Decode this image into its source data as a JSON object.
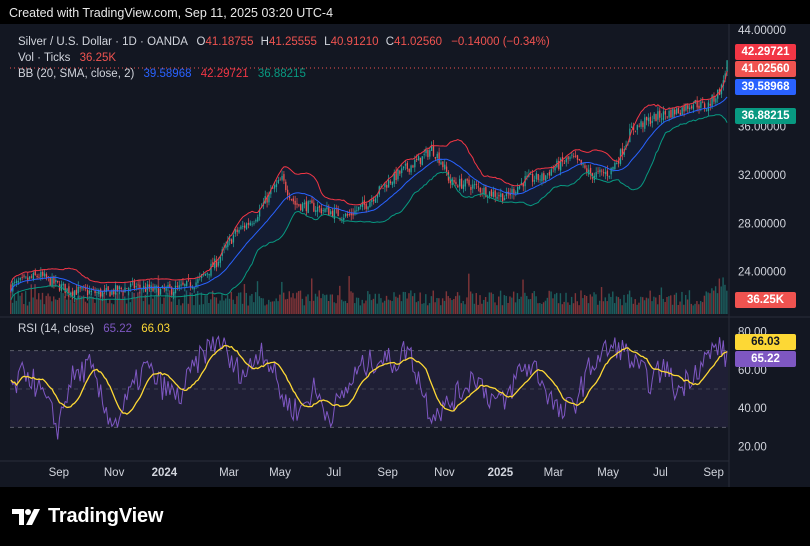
{
  "header": {
    "credit": "Created with TradingView.com, Sep 11, 2025 03:20 UTC-4"
  },
  "legend": {
    "symbol": "Silver / U.S. Dollar · 1D · OANDA",
    "o_label": "O",
    "open": "41.18755",
    "h_label": "H",
    "high": "41.25555",
    "l_label": "L",
    "low": "40.91210",
    "c_label": "C",
    "close": "41.02560",
    "change": "−0.14000 (−0.34%)",
    "vol_label": "Vol · Ticks",
    "vol_value": "36.25K",
    "bb_label": "BB (20, SMA, close, 2)",
    "bb_mid": "39.58968",
    "bb_upper": "42.29721",
    "bb_lower": "36.88215",
    "rsi_label": "RSI (14, close)",
    "rsi_value": "65.22",
    "rsi_ma_value": "66.03"
  },
  "price_tags": {
    "upper": "42.29721",
    "close": "41.02560",
    "mid": "39.58968",
    "lower": "36.88215",
    "volume": "36.25K",
    "rsi_ma": "66.03",
    "rsi": "65.22"
  },
  "footer": {
    "brand": "TradingView"
  },
  "colors": {
    "background": "#131722",
    "up": "#26a69a",
    "down": "#ef5350",
    "bb_upper": "#f23645",
    "bb_basis": "#2962ff",
    "bb_lower": "#089981",
    "rsi": "#7e57c2",
    "rsi_ma": "#fdd835"
  },
  "chart_data": {
    "type": "candlestick",
    "price_axis": {
      "ticks": [
        "44.00000",
        "36.00000",
        "32.00000",
        "28.00000",
        "24.00000"
      ],
      "range": [
        20.5,
        44.5
      ]
    },
    "rsi_axis": {
      "ticks": [
        "80.00",
        "60.00",
        "40.00",
        "20.00"
      ],
      "bands": [
        70,
        50,
        30
      ]
    },
    "time_axis": [
      "Sep",
      "Nov",
      "2024",
      "Mar",
      "May",
      "Jul",
      "Sep",
      "Nov",
      "2025",
      "Mar",
      "May",
      "Jul",
      "Sep"
    ],
    "price_anchors": [
      [
        0,
        22.8
      ],
      [
        15,
        23.7
      ],
      [
        30,
        22.5
      ],
      [
        50,
        22.2
      ],
      [
        65,
        22.8
      ],
      [
        80,
        22.4
      ],
      [
        90,
        22.6
      ],
      [
        100,
        23.2
      ],
      [
        110,
        24.8
      ],
      [
        120,
        27.2
      ],
      [
        130,
        28.4
      ],
      [
        140,
        30.8
      ],
      [
        145,
        31.6
      ],
      [
        152,
        29.6
      ],
      [
        160,
        29.4
      ],
      [
        170,
        29.0
      ],
      [
        180,
        28.6
      ],
      [
        190,
        29.6
      ],
      [
        200,
        31.2
      ],
      [
        210,
        32.4
      ],
      [
        220,
        33.4
      ],
      [
        225,
        34.2
      ],
      [
        230,
        33.2
      ],
      [
        235,
        31.4
      ],
      [
        245,
        31.2
      ],
      [
        255,
        30.6
      ],
      [
        265,
        30.2
      ],
      [
        275,
        31.6
      ],
      [
        285,
        31.8
      ],
      [
        290,
        32.6
      ],
      [
        300,
        33.4
      ],
      [
        305,
        32.8
      ],
      [
        310,
        32.0
      ],
      [
        320,
        32.2
      ],
      [
        325,
        33.4
      ],
      [
        332,
        35.8
      ],
      [
        345,
        36.8
      ],
      [
        358,
        37.4
      ],
      [
        365,
        38.0
      ],
      [
        372,
        37.6
      ],
      [
        380,
        39.2
      ],
      [
        383,
        41.3
      ]
    ],
    "rsi_anchors": [
      [
        0,
        48
      ],
      [
        8,
        60
      ],
      [
        18,
        45
      ],
      [
        25,
        30
      ],
      [
        32,
        55
      ],
      [
        42,
        62
      ],
      [
        50,
        40
      ],
      [
        56,
        32
      ],
      [
        64,
        48
      ],
      [
        72,
        62
      ],
      [
        80,
        52
      ],
      [
        90,
        45
      ],
      [
        96,
        58
      ],
      [
        104,
        70
      ],
      [
        112,
        76
      ],
      [
        118,
        62
      ],
      [
        126,
        58
      ],
      [
        134,
        72
      ],
      [
        140,
        60
      ],
      [
        146,
        44
      ],
      [
        154,
        38
      ],
      [
        162,
        50
      ],
      [
        170,
        36
      ],
      [
        176,
        44
      ],
      [
        186,
        60
      ],
      [
        196,
        66
      ],
      [
        206,
        64
      ],
      [
        212,
        72
      ],
      [
        218,
        56
      ],
      [
        224,
        38
      ],
      [
        232,
        40
      ],
      [
        240,
        48
      ],
      [
        248,
        58
      ],
      [
        256,
        46
      ],
      [
        264,
        42
      ],
      [
        272,
        60
      ],
      [
        280,
        62
      ],
      [
        286,
        50
      ],
      [
        294,
        36
      ],
      [
        302,
        44
      ],
      [
        310,
        62
      ],
      [
        318,
        70
      ],
      [
        326,
        72
      ],
      [
        334,
        62
      ],
      [
        342,
        54
      ],
      [
        350,
        62
      ],
      [
        356,
        48
      ],
      [
        364,
        58
      ],
      [
        372,
        66
      ],
      [
        378,
        73
      ],
      [
        383,
        66
      ]
    ]
  }
}
